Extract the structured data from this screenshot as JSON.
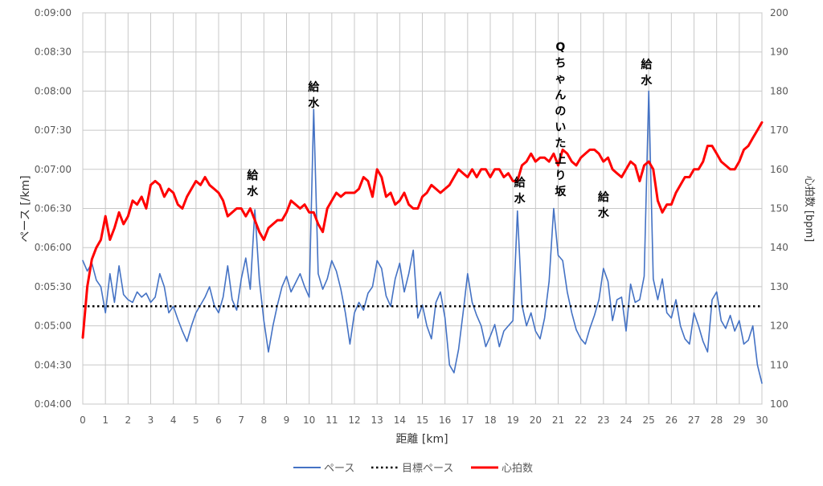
{
  "chart_data": {
    "type": "line",
    "xlabel": "距離 [km]",
    "ylabel_left": "ペース [/km]",
    "ylabel_right": "心拍数 [bpm]",
    "xlim": [
      0,
      30
    ],
    "ylim_left_seconds": [
      240,
      540
    ],
    "ylim_right": [
      100,
      200
    ],
    "x_ticks": [
      0,
      1,
      2,
      3,
      4,
      5,
      6,
      7,
      8,
      9,
      10,
      11,
      12,
      13,
      14,
      15,
      16,
      17,
      18,
      19,
      20,
      21,
      22,
      23,
      24,
      25,
      26,
      27,
      28,
      29,
      30
    ],
    "y_left_ticks": [
      {
        "value": 240,
        "label": "0:04:00"
      },
      {
        "value": 270,
        "label": "0:04:30"
      },
      {
        "value": 300,
        "label": "0:05:00"
      },
      {
        "value": 330,
        "label": "0:05:30"
      },
      {
        "value": 360,
        "label": "0:06:00"
      },
      {
        "value": 390,
        "label": "0:06:30"
      },
      {
        "value": 420,
        "label": "0:07:00"
      },
      {
        "value": 450,
        "label": "0:07:30"
      },
      {
        "value": 480,
        "label": "0:08:00"
      },
      {
        "value": 510,
        "label": "0:08:30"
      },
      {
        "value": 540,
        "label": "0:09:00"
      }
    ],
    "y_right_ticks": [
      100,
      110,
      120,
      130,
      140,
      150,
      160,
      170,
      180,
      190,
      200
    ],
    "grid": true,
    "legend_position": "bottom",
    "series": [
      {
        "name": "ペース",
        "axis": "left",
        "color": "#4472C4",
        "x": [
          0,
          0.2,
          0.4,
          0.6,
          0.8,
          1.0,
          1.2,
          1.4,
          1.6,
          1.8,
          2.0,
          2.2,
          2.4,
          2.6,
          2.8,
          3.0,
          3.2,
          3.4,
          3.6,
          3.8,
          4.0,
          4.2,
          4.4,
          4.6,
          4.8,
          5.0,
          5.2,
          5.4,
          5.6,
          5.8,
          6.0,
          6.2,
          6.4,
          6.6,
          6.8,
          7.0,
          7.2,
          7.4,
          7.6,
          7.8,
          8.0,
          8.2,
          8.4,
          8.6,
          8.8,
          9.0,
          9.2,
          9.4,
          9.6,
          9.8,
          10.0,
          10.2,
          10.4,
          10.6,
          10.8,
          11.0,
          11.2,
          11.4,
          11.6,
          11.8,
          12.0,
          12.2,
          12.4,
          12.6,
          12.8,
          13.0,
          13.2,
          13.4,
          13.6,
          13.8,
          14.0,
          14.2,
          14.4,
          14.6,
          14.8,
          15.0,
          15.2,
          15.4,
          15.6,
          15.8,
          16.0,
          16.2,
          16.4,
          16.6,
          16.8,
          17.0,
          17.2,
          17.4,
          17.6,
          17.8,
          18.0,
          18.2,
          18.4,
          18.6,
          18.8,
          19.0,
          19.2,
          19.4,
          19.6,
          19.8,
          20.0,
          20.2,
          20.4,
          20.6,
          20.8,
          21.0,
          21.2,
          21.4,
          21.6,
          21.8,
          22.0,
          22.2,
          22.4,
          22.6,
          22.8,
          23.0,
          23.2,
          23.4,
          23.6,
          23.8,
          24.0,
          24.2,
          24.4,
          24.6,
          24.8,
          25.0,
          25.2,
          25.4,
          25.6,
          25.8,
          26.0,
          26.2,
          26.4,
          26.6,
          26.8,
          27.0,
          27.2,
          27.4,
          27.6,
          27.8,
          28.0,
          28.2,
          28.4,
          28.6,
          28.8,
          29.0,
          29.2,
          29.4,
          29.6,
          29.8,
          30.0
        ],
        "y": [
          350,
          342,
          348,
          335,
          330,
          310,
          340,
          318,
          346,
          324,
          320,
          318,
          326,
          322,
          325,
          318,
          322,
          340,
          330,
          310,
          315,
          305,
          296,
          288,
          300,
          310,
          316,
          322,
          330,
          316,
          310,
          322,
          346,
          320,
          312,
          336,
          352,
          328,
          389,
          335,
          304,
          280,
          300,
          316,
          330,
          338,
          326,
          333,
          340,
          330,
          322,
          466,
          340,
          328,
          336,
          350,
          342,
          328,
          310,
          286,
          310,
          318,
          312,
          325,
          330,
          350,
          344,
          323,
          315,
          336,
          348,
          326,
          340,
          358,
          306,
          316,
          300,
          290,
          318,
          326,
          306,
          270,
          264,
          282,
          310,
          340,
          318,
          308,
          300,
          284,
          292,
          301,
          284,
          296,
          300,
          304,
          388,
          316,
          300,
          310,
          296,
          290,
          306,
          334,
          390,
          354,
          350,
          326,
          310,
          297,
          290,
          286,
          298,
          308,
          320,
          344,
          334,
          304,
          320,
          322,
          296,
          332,
          318,
          320,
          338,
          480,
          336,
          320,
          336,
          310,
          306,
          320,
          300,
          290,
          286,
          310,
          300,
          288,
          280,
          320,
          326,
          304,
          298,
          308,
          296,
          304,
          286,
          289,
          300,
          270,
          256
        ]
      },
      {
        "name": "目標ペース",
        "axis": "left",
        "color": "#000000",
        "dashed": true,
        "x": [
          0,
          30
        ],
        "y": [
          315,
          315
        ]
      },
      {
        "name": "心拍数",
        "axis": "right",
        "color": "#FF0000",
        "x": [
          0,
          0.2,
          0.4,
          0.6,
          0.8,
          1.0,
          1.2,
          1.4,
          1.6,
          1.8,
          2.0,
          2.2,
          2.4,
          2.6,
          2.8,
          3.0,
          3.2,
          3.4,
          3.6,
          3.8,
          4.0,
          4.2,
          4.4,
          4.6,
          4.8,
          5.0,
          5.2,
          5.4,
          5.6,
          5.8,
          6.0,
          6.2,
          6.4,
          6.6,
          6.8,
          7.0,
          7.2,
          7.4,
          7.6,
          7.8,
          8.0,
          8.2,
          8.4,
          8.6,
          8.8,
          9.0,
          9.2,
          9.4,
          9.6,
          9.8,
          10.0,
          10.2,
          10.4,
          10.6,
          10.8,
          11.0,
          11.2,
          11.4,
          11.6,
          11.8,
          12.0,
          12.2,
          12.4,
          12.6,
          12.8,
          13.0,
          13.2,
          13.4,
          13.6,
          13.8,
          14.0,
          14.2,
          14.4,
          14.6,
          14.8,
          15.0,
          15.2,
          15.4,
          15.6,
          15.8,
          16.0,
          16.2,
          16.4,
          16.6,
          16.8,
          17.0,
          17.2,
          17.4,
          17.6,
          17.8,
          18.0,
          18.2,
          18.4,
          18.6,
          18.8,
          19.0,
          19.2,
          19.4,
          19.6,
          19.8,
          20.0,
          20.2,
          20.4,
          20.6,
          20.8,
          21.0,
          21.2,
          21.4,
          21.6,
          21.8,
          22.0,
          22.2,
          22.4,
          22.6,
          22.8,
          23.0,
          23.2,
          23.4,
          23.6,
          23.8,
          24.0,
          24.2,
          24.4,
          24.6,
          24.8,
          25.0,
          25.2,
          25.4,
          25.6,
          25.8,
          26.0,
          26.2,
          26.4,
          26.6,
          26.8,
          27.0,
          27.2,
          27.4,
          27.6,
          27.8,
          28.0,
          28.2,
          28.4,
          28.6,
          28.8,
          29.0,
          29.2,
          29.4,
          29.6,
          29.8,
          30.0
        ],
        "y": [
          117,
          130,
          137,
          140,
          142,
          148,
          142,
          145,
          149,
          146,
          148,
          152,
          151,
          153,
          150,
          156,
          157,
          156,
          153,
          155,
          154,
          151,
          150,
          153,
          155,
          157,
          156,
          158,
          156,
          155,
          154,
          152,
          148,
          149,
          150,
          150,
          148,
          150,
          147,
          144,
          142,
          145,
          146,
          147,
          147,
          149,
          152,
          151,
          150,
          151,
          149,
          149,
          146,
          144,
          150,
          152,
          154,
          153,
          154,
          154,
          154,
          155,
          158,
          157,
          153,
          160,
          158,
          153,
          154,
          151,
          152,
          154,
          151,
          150,
          150,
          153,
          154,
          156,
          155,
          154,
          155,
          156,
          158,
          160,
          159,
          158,
          160,
          158,
          160,
          160,
          158,
          160,
          160,
          158,
          159,
          157,
          157,
          161,
          162,
          164,
          162,
          163,
          163,
          162,
          164,
          161,
          165,
          164,
          162,
          161,
          163,
          164,
          165,
          165,
          164,
          162,
          163,
          160,
          159,
          158,
          160,
          162,
          161,
          157,
          161,
          162,
          160,
          152,
          149,
          151,
          151,
          154,
          156,
          158,
          158,
          160,
          160,
          162,
          166,
          166,
          164,
          162,
          161,
          160,
          160,
          162,
          165,
          166,
          168,
          170,
          172
        ]
      }
    ],
    "annotations": [
      {
        "text": "給水",
        "x": 7.5
      },
      {
        "text": "給水",
        "x": 10.2
      },
      {
        "text": "給水",
        "x": 19.3
      },
      {
        "text": "Qちゃんのいた上り坂",
        "x": 21.1
      },
      {
        "text": "給水",
        "x": 23.0
      },
      {
        "text": "給水",
        "x": 24.9
      }
    ]
  }
}
